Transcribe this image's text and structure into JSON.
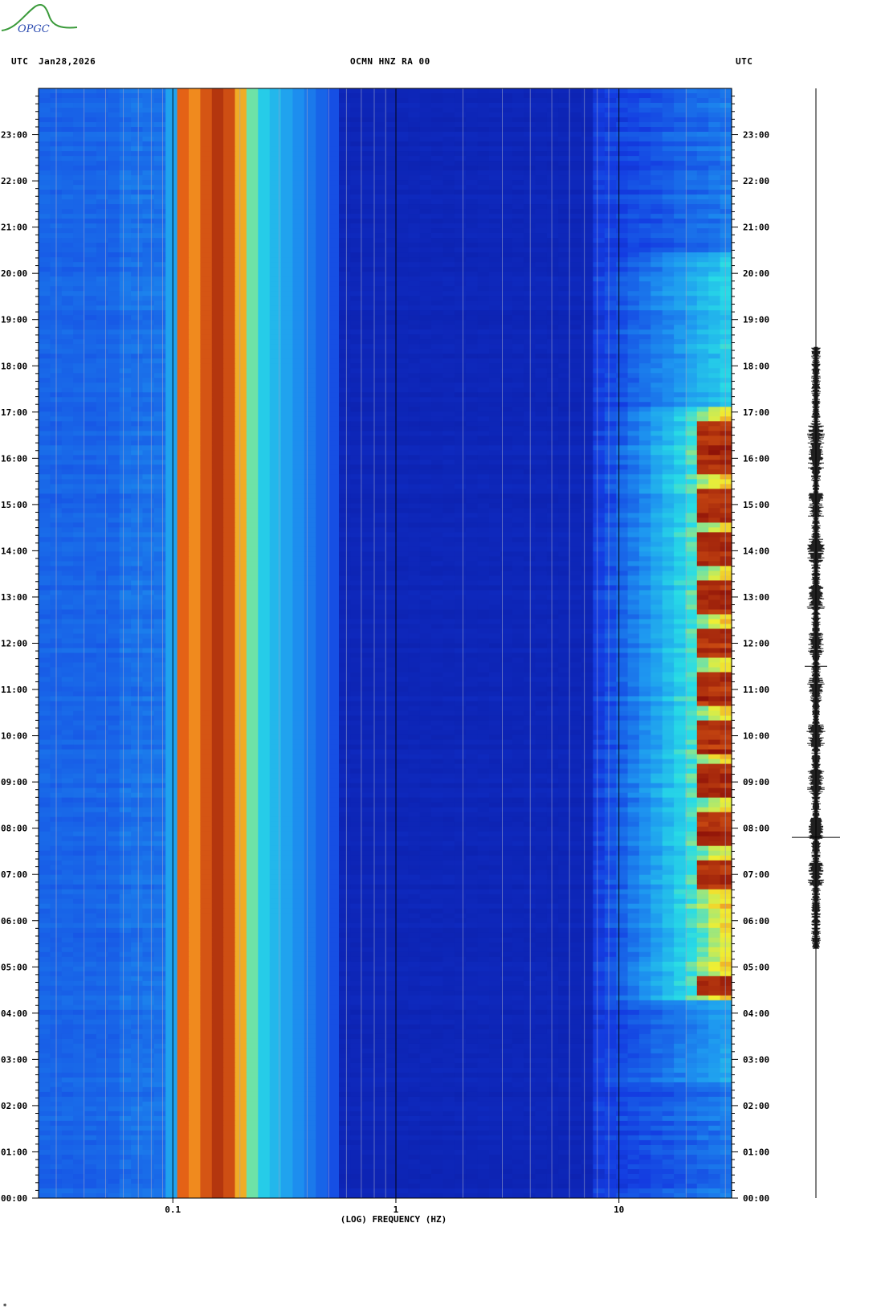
{
  "header": {
    "tz_left": "UTC",
    "date": "Jan28,2026",
    "station": "OCMN HNZ RA 00",
    "tz_right": "UTC"
  },
  "logo": {
    "text": "OPGC"
  },
  "colors": {
    "deep_blue": "#0a1aa8",
    "blue": "#1a45e0",
    "cyan": "#2ad8e8",
    "yellow": "#f2ee30",
    "orange": "#f07018",
    "dark_red": "#8a1008"
  },
  "chart_data": {
    "type": "heatmap",
    "title": "OCMN HNZ RA 00",
    "xlabel": "(LOG) FREQUENCY (HZ)",
    "ylabel": "",
    "x_scale": "log",
    "xlim": [
      0.025,
      32
    ],
    "x_ticks": [
      {
        "value": 0.1,
        "label": "0.1"
      },
      {
        "value": 1,
        "label": "1"
      },
      {
        "value": 10,
        "label": "10"
      }
    ],
    "ylim_hours": [
      0,
      24
    ],
    "y_ticks": [
      "00:00",
      "01:00",
      "02:00",
      "03:00",
      "04:00",
      "05:00",
      "06:00",
      "07:00",
      "08:00",
      "09:00",
      "10:00",
      "11:00",
      "12:00",
      "13:00",
      "14:00",
      "15:00",
      "16:00",
      "17:00",
      "18:00",
      "19:00",
      "20:00",
      "21:00",
      "22:00",
      "23:00"
    ],
    "grid": true,
    "microseism_band_hz": [
      0.1,
      0.3
    ],
    "microseism_peak_hz": 0.16,
    "high_freq_activity": {
      "band_hz": [
        8,
        32
      ],
      "strong_hours": [
        4.3,
        17.1
      ],
      "peak_hours": [
        4.5,
        7.0,
        8.0,
        9.0,
        10.0,
        11.0,
        12.0,
        13.0,
        14.0,
        15.0,
        16.0,
        16.5
      ]
    },
    "trace": {
      "label": "seismogram",
      "active_hours": [
        5.4,
        18.4
      ],
      "spike_hours": [
        7.8,
        11.5
      ]
    }
  }
}
